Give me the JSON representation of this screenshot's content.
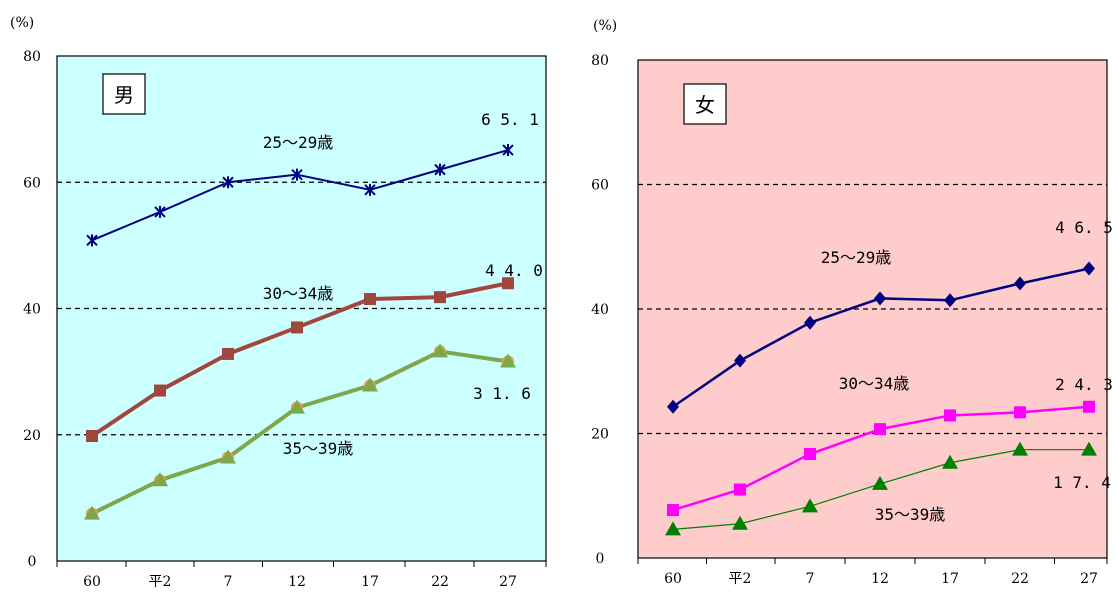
{
  "chart_data": [
    {
      "type": "line",
      "panel_label": "男",
      "unit_label": "(%)",
      "background": "#ccffff",
      "categories": [
        "60",
        "平2",
        "7",
        "12",
        "17",
        "22",
        "27"
      ],
      "ylim": [
        0,
        80
      ],
      "yticks": [
        0,
        20,
        40,
        60,
        80
      ],
      "grid_dashed": [
        20,
        40,
        60
      ],
      "series": [
        {
          "name": "25〜29歳",
          "color": "#000080",
          "marker": "star",
          "width": 2,
          "values": [
            50.8,
            55.3,
            60.0,
            61.2,
            58.8,
            62.0,
            65.1
          ]
        },
        {
          "name": "30〜34歳",
          "color": "#a0463c",
          "marker": "square",
          "width": 4,
          "values": [
            19.8,
            27.0,
            32.8,
            37.0,
            41.5,
            41.8,
            44.0
          ]
        },
        {
          "name": "35〜39歳",
          "color": "#7ea64a",
          "marker": "triangle",
          "width": 4,
          "values": [
            7.5,
            12.8,
            16.4,
            24.3,
            27.8,
            33.2,
            31.6
          ]
        }
      ],
      "annotations": [
        "65.1",
        "44.0",
        "31.6"
      ]
    },
    {
      "type": "line",
      "panel_label": "女",
      "unit_label": "(%)",
      "background": "#ffcccc",
      "categories": [
        "60",
        "平2",
        "7",
        "12",
        "17",
        "22",
        "27"
      ],
      "ylim": [
        0,
        80
      ],
      "yticks": [
        0,
        20,
        40,
        60,
        80
      ],
      "grid_dashed": [
        20,
        40,
        60
      ],
      "series": [
        {
          "name": "25〜29歳",
          "color": "#000080",
          "marker": "diamond",
          "width": 2.5,
          "values": [
            24.3,
            31.7,
            37.8,
            41.7,
            41.4,
            44.1,
            46.5
          ]
        },
        {
          "name": "30〜34歳",
          "color": "#ff00ff",
          "marker": "square",
          "width": 2.5,
          "values": [
            7.7,
            11.0,
            16.7,
            20.7,
            22.9,
            23.4,
            24.3
          ]
        },
        {
          "name": "35〜39歳",
          "color": "#008000",
          "marker": "triangle",
          "width": 1.2,
          "values": [
            4.6,
            5.5,
            8.3,
            11.9,
            15.3,
            17.4,
            17.4
          ]
        }
      ],
      "annotations": [
        "46.5",
        "24.3",
        "17.4"
      ]
    }
  ]
}
